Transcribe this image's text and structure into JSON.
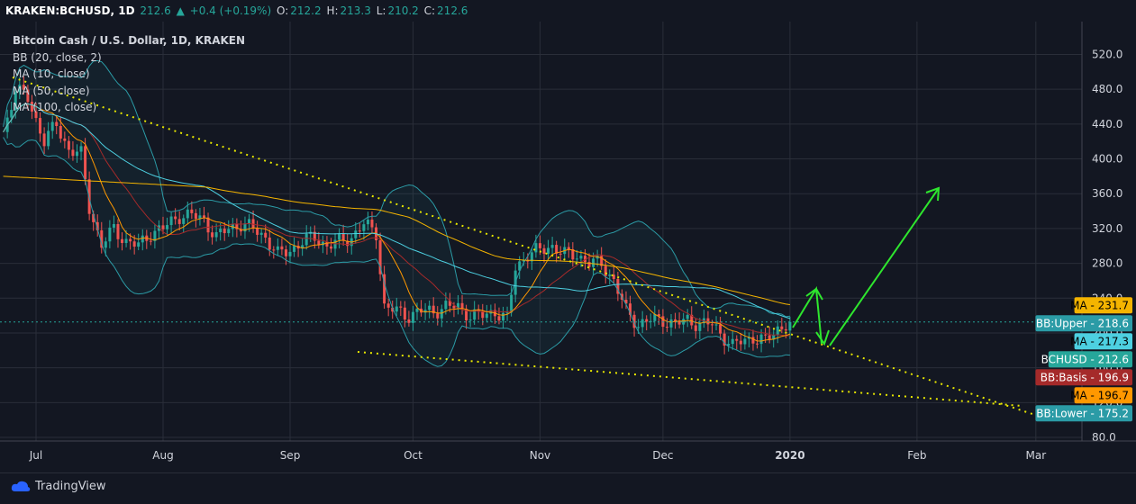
{
  "header": {
    "symbol": "KRAKEN:BCHUSD, 1D",
    "price": "212.6",
    "change_arrow": "▲",
    "change": "+0.4 (+0.19%)",
    "o_label": "O:",
    "o_value": "212.2",
    "h_label": "H:",
    "h_value": "213.3",
    "l_label": "L:",
    "l_value": "210.2",
    "c_label": "C:",
    "c_value": "212.6"
  },
  "legend": {
    "title": "Bitcoin Cash / U.S. Dollar, 1D, KRAKEN",
    "bb": "BB (20, close, 2)",
    "ma10": "MA (10, close)",
    "ma50": "MA (50, close)",
    "ma100": "MA (100, close)"
  },
  "footer": {
    "brand": "TradingView"
  },
  "colors": {
    "up": "#26a69a",
    "down": "#ef5350",
    "bb_upper": "#2b9ba6",
    "bb_basis": "#a52a2a",
    "ma10": "#ff9800",
    "ma50": "#4dd0e1",
    "ma100": "#f4b400",
    "trend": "#e6e600",
    "arrow": "#2ee62e",
    "grid": "#2a2e39"
  },
  "chart_data": {
    "type": "candlestick",
    "y_ticks": [
      80,
      120,
      160,
      200,
      240,
      280,
      320,
      360,
      400,
      440,
      480,
      520
    ],
    "y_tick_labels": [
      "80.0",
      "120.0",
      "160.0",
      "200.0",
      "240.0",
      "280.0",
      "320.0",
      "360.0",
      "400.0",
      "440.0",
      "480.0",
      "520.0"
    ],
    "x_ticks": [
      "Jul",
      "Aug",
      "Sep",
      "Oct",
      "Nov",
      "Dec",
      "2020",
      "Feb",
      "Mar"
    ],
    "x_tick_dates": [
      "2019-07-01",
      "2019-08-01",
      "2019-09-01",
      "2019-10-01",
      "2019-11-01",
      "2019-12-01",
      "2020-01-01",
      "2020-02-01",
      "2020-03-01"
    ],
    "current_price": 212.6,
    "price_labels": [
      {
        "text": "MA",
        "value": "231.7",
        "price": 231.7,
        "bg": "#f4b400",
        "fg": "#000000"
      },
      {
        "text": "BB:Upper",
        "value": "218.6",
        "price": 218.6,
        "bg": "#2b9ba6",
        "fg": "#ffffff"
      },
      {
        "text": "MA",
        "value": "217.3",
        "price": 217.3,
        "bg": "#4dd0e1",
        "fg": "#000000"
      },
      {
        "text": "BCHUSD",
        "value": "212.6",
        "price": 212.6,
        "bg": "#26a69a",
        "fg": "#ffffff"
      },
      {
        "text": "BB:Basis",
        "value": "196.9",
        "price": 196.9,
        "bg": "#a52a2a",
        "fg": "#ffffff"
      },
      {
        "text": "MA",
        "value": "196.7",
        "price": 196.7,
        "bg": "#ff9800",
        "fg": "#000000"
      },
      {
        "text": "BB:Lower",
        "value": "175.2",
        "price": 175.2,
        "bg": "#2b9ba6",
        "fg": "#ffffff"
      }
    ],
    "closes": [
      [
        "2019-06-23",
        430
      ],
      [
        "2019-06-26",
        480
      ],
      [
        "2019-06-29",
        470
      ],
      [
        "2019-07-03",
        420
      ],
      [
        "2019-07-06",
        440
      ],
      [
        "2019-07-09",
        410
      ],
      [
        "2019-07-12",
        405
      ],
      [
        "2019-07-14",
        345
      ],
      [
        "2019-07-17",
        300
      ],
      [
        "2019-07-20",
        320
      ],
      [
        "2019-07-23",
        305
      ],
      [
        "2019-07-26",
        300
      ],
      [
        "2019-07-29",
        315
      ],
      [
        "2019-08-01",
        320
      ],
      [
        "2019-08-05",
        335
      ],
      [
        "2019-08-08",
        335
      ],
      [
        "2019-08-11",
        330
      ],
      [
        "2019-08-14",
        310
      ],
      [
        "2019-08-17",
        320
      ],
      [
        "2019-08-20",
        325
      ],
      [
        "2019-08-23",
        320
      ],
      [
        "2019-08-26",
        310
      ],
      [
        "2019-08-29",
        290
      ],
      [
        "2019-09-01",
        295
      ],
      [
        "2019-09-04",
        305
      ],
      [
        "2019-09-07",
        310
      ],
      [
        "2019-09-10",
        300
      ],
      [
        "2019-09-13",
        305
      ],
      [
        "2019-09-16",
        310
      ],
      [
        "2019-09-19",
        325
      ],
      [
        "2019-09-22",
        315
      ],
      [
        "2019-09-24",
        230
      ],
      [
        "2019-09-27",
        225
      ],
      [
        "2019-09-30",
        220
      ],
      [
        "2019-10-03",
        225
      ],
      [
        "2019-10-06",
        225
      ],
      [
        "2019-10-09",
        230
      ],
      [
        "2019-10-12",
        230
      ],
      [
        "2019-10-15",
        220
      ],
      [
        "2019-10-18",
        220
      ],
      [
        "2019-10-21",
        225
      ],
      [
        "2019-10-24",
        215
      ],
      [
        "2019-10-26",
        275
      ],
      [
        "2019-10-29",
        290
      ],
      [
        "2019-11-01",
        295
      ],
      [
        "2019-11-04",
        300
      ],
      [
        "2019-11-07",
        290
      ],
      [
        "2019-11-10",
        290
      ],
      [
        "2019-11-13",
        280
      ],
      [
        "2019-11-16",
        280
      ],
      [
        "2019-11-19",
        260
      ],
      [
        "2019-11-22",
        225
      ],
      [
        "2019-11-25",
        210
      ],
      [
        "2019-11-28",
        215
      ],
      [
        "2019-12-01",
        215
      ],
      [
        "2019-12-04",
        210
      ],
      [
        "2019-12-07",
        215
      ],
      [
        "2019-12-10",
        210
      ],
      [
        "2019-12-13",
        210
      ],
      [
        "2019-12-16",
        195
      ],
      [
        "2019-12-18",
        185
      ],
      [
        "2019-12-20",
        190
      ],
      [
        "2019-12-23",
        195
      ],
      [
        "2019-12-26",
        190
      ],
      [
        "2019-12-29",
        205
      ],
      [
        "2020-01-01",
        212.6
      ]
    ]
  }
}
